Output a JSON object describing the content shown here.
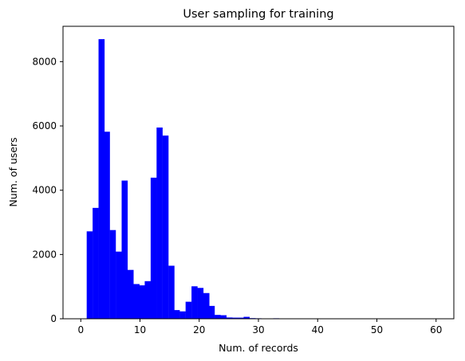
{
  "chart_data": {
    "type": "bar",
    "title": "User sampling for training",
    "xlabel": "Num. of records",
    "ylabel": "Num. of users",
    "xlim": [
      -3,
      63
    ],
    "ylim": [
      0,
      9100
    ],
    "xticks": [
      0,
      10,
      20,
      30,
      40,
      50,
      60
    ],
    "yticks": [
      0,
      2000,
      4000,
      6000,
      8000
    ],
    "grid": false,
    "bar_color": "#0000ff",
    "bin_width": 0.983,
    "bins": [
      {
        "x": 1.0,
        "count": 2720
      },
      {
        "x": 2.0,
        "count": 3450
      },
      {
        "x": 3.0,
        "count": 8700
      },
      {
        "x": 3.9,
        "count": 5820
      },
      {
        "x": 4.9,
        "count": 2760
      },
      {
        "x": 5.9,
        "count": 2090
      },
      {
        "x": 6.9,
        "count": 4300
      },
      {
        "x": 7.9,
        "count": 1520
      },
      {
        "x": 8.9,
        "count": 1080
      },
      {
        "x": 9.8,
        "count": 1040
      },
      {
        "x": 10.8,
        "count": 1170
      },
      {
        "x": 11.8,
        "count": 4390
      },
      {
        "x": 12.8,
        "count": 5950
      },
      {
        "x": 13.8,
        "count": 5700
      },
      {
        "x": 14.8,
        "count": 1650
      },
      {
        "x": 15.7,
        "count": 270
      },
      {
        "x": 16.7,
        "count": 230
      },
      {
        "x": 17.7,
        "count": 530
      },
      {
        "x": 18.7,
        "count": 1010
      },
      {
        "x": 19.7,
        "count": 960
      },
      {
        "x": 20.7,
        "count": 800
      },
      {
        "x": 21.6,
        "count": 400
      },
      {
        "x": 22.6,
        "count": 120
      },
      {
        "x": 23.6,
        "count": 110
      },
      {
        "x": 24.6,
        "count": 40
      },
      {
        "x": 25.6,
        "count": 35
      },
      {
        "x": 26.6,
        "count": 35
      },
      {
        "x": 27.5,
        "count": 60
      },
      {
        "x": 28.5,
        "count": 20
      },
      {
        "x": 29.5,
        "count": 15
      },
      {
        "x": 30.5,
        "count": 5
      },
      {
        "x": 31.5,
        "count": 3
      },
      {
        "x": 32.5,
        "count": 15
      },
      {
        "x": 33.4,
        "count": 10
      },
      {
        "x": 34.4,
        "count": 3
      }
    ]
  }
}
